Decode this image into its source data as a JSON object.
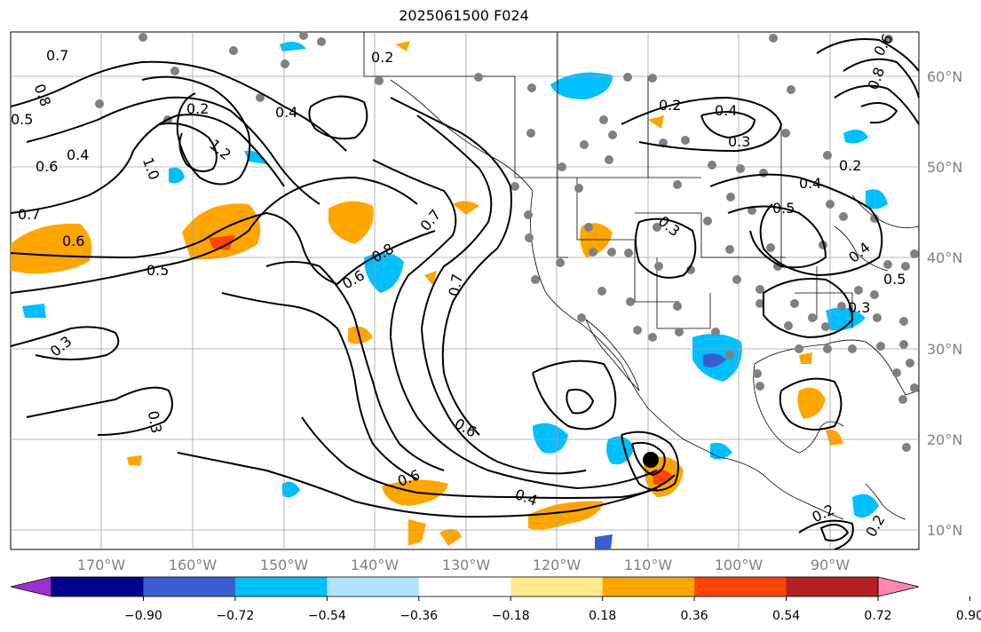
{
  "title": "2025061500 F024",
  "lon_labels": [
    "170°W",
    "160°W",
    "150°W",
    "140°W",
    "130°W",
    "120°W",
    "110°W",
    "100°W",
    "90°W"
  ],
  "lat_labels": [
    "60°N",
    "50°N",
    "40°N",
    "30°N",
    "20°N",
    "10°N"
  ],
  "contour_labels": [
    "0.7",
    "0.8",
    "0.5",
    "0.6",
    "0.4",
    "1.0",
    "1.2",
    "0.7",
    "0.6",
    "0.5",
    "0.3",
    "0.2",
    "0.2",
    "0.4",
    "0.8",
    "0.6",
    "0.7",
    "0.7",
    "0.6",
    "0.6",
    "0.4",
    "0.3",
    "0.2",
    "0.4",
    "0.3",
    "0.2",
    "0.4",
    "0.5",
    "0.3",
    "0.4",
    "0.5",
    "0.3",
    "0.2",
    "0.2",
    "0.8",
    "0.6"
  ],
  "colorbar": {
    "ticks": [
      "−0.90",
      "−0.72",
      "−0.54",
      "−0.36",
      "−0.18",
      "0.18",
      "0.36",
      "0.54",
      "0.72",
      "0.90"
    ],
    "colors": [
      "#9b30d0",
      "#00008b",
      "#3a5fcd",
      "#00bfff",
      "#b0e2ff",
      "#ffffff",
      "#ffe98c",
      "#ffa500",
      "#ff4500",
      "#b22222",
      "#ff88aa"
    ]
  },
  "colors": {
    "warm": "#ffa500",
    "cool": "#00bfff",
    "dark_blue": "#3a5fcd",
    "red": "#ff4500",
    "station": "#808080"
  }
}
